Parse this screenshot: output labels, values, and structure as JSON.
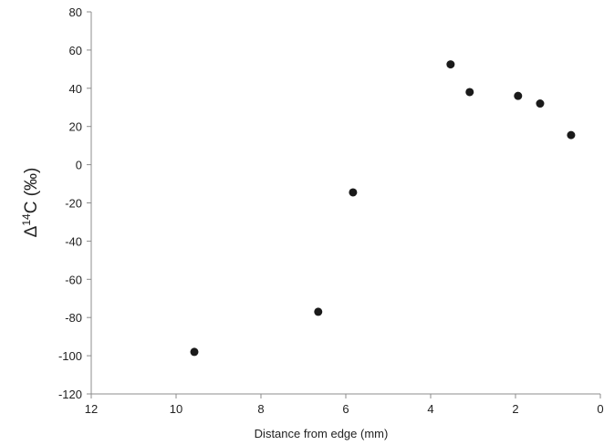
{
  "chart_data": {
    "type": "scatter",
    "xlabel": "Distance from edge (mm)",
    "ylabel": {
      "prefix": "Δ",
      "superscript": "14",
      "suffix": "C (‰)"
    },
    "x": [
      9.57,
      6.65,
      5.83,
      3.53,
      3.08,
      1.94,
      1.42,
      0.69
    ],
    "values": [
      -98,
      -77,
      -14.5,
      52.5,
      38,
      36,
      32,
      15.5
    ],
    "color": "#1a1a1a",
    "xlim": [
      12,
      0
    ],
    "xticks": [
      12,
      10,
      8,
      6,
      4,
      2,
      0
    ],
    "ylim": [
      -120,
      80
    ],
    "yticks": [
      80,
      60,
      40,
      20,
      0,
      -20,
      -40,
      -60,
      -80,
      -100,
      -120
    ]
  }
}
